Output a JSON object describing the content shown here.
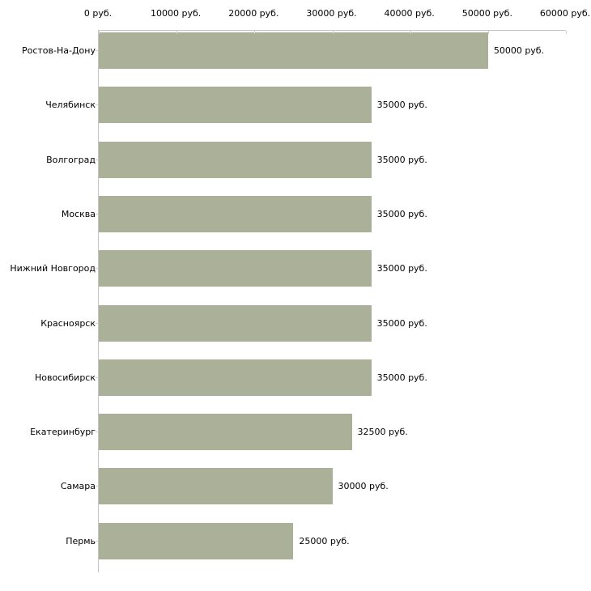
{
  "chart_data": {
    "type": "bar",
    "orientation": "horizontal",
    "title": "",
    "xlabel": "",
    "ylabel": "",
    "unit": "руб.",
    "xlim": [
      0,
      60000
    ],
    "grid": false,
    "legend_position": "none",
    "categories": [
      "Ростов-На-Дону",
      "Челябинск",
      "Волгоград",
      "Москва",
      "Нижний Новгород",
      "Красноярск",
      "Новосибирск",
      "Екатеринбург",
      "Самара",
      "Пермь"
    ],
    "values": [
      50000,
      35000,
      35000,
      35000,
      35000,
      35000,
      35000,
      32500,
      30000,
      25000
    ],
    "value_labels": [
      "50000 руб.",
      "35000 руб.",
      "35000 руб.",
      "35000 руб.",
      "35000 руб.",
      "35000 руб.",
      "35000 руб.",
      "32500 руб.",
      "30000 руб.",
      "25000 руб."
    ],
    "x_ticks": [
      0,
      10000,
      20000,
      30000,
      40000,
      50000,
      60000
    ],
    "x_tick_labels": [
      "0 руб.",
      "10000 руб.",
      "20000 руб.",
      "30000 руб.",
      "40000 руб.",
      "50000 руб.",
      "60000 руб."
    ],
    "colors": {
      "bar_fill": "#abb199",
      "axis_line": "#c4c4c4",
      "tick_mark": "#d3d6bc",
      "label_text": "#000000",
      "background": "#ffffff"
    }
  }
}
